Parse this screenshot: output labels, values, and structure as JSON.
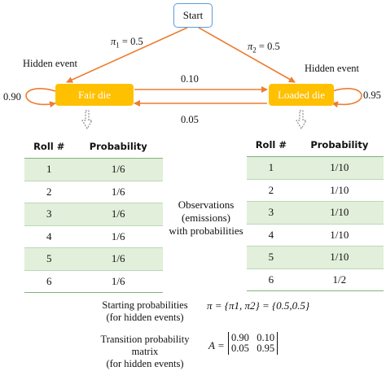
{
  "start": {
    "label": "Start"
  },
  "pi1": {
    "symbol": "π",
    "sub": "1",
    "value": "= 0.5"
  },
  "pi2": {
    "symbol": "π",
    "sub": "2",
    "value": "= 0.5"
  },
  "hidden_event_left": "Hidden event",
  "hidden_event_right": "Hidden event",
  "fair_die": "Fair die",
  "loaded_die": "Loaded die",
  "self_fair": "0.90",
  "self_loaded": "0.95",
  "fair_to_loaded": "0.10",
  "loaded_to_fair": "0.05",
  "table_headers": {
    "roll": "Roll #",
    "prob": "Probability"
  },
  "fair_table": [
    {
      "roll": "1",
      "prob": "1/6"
    },
    {
      "roll": "2",
      "prob": "1/6"
    },
    {
      "roll": "3",
      "prob": "1/6"
    },
    {
      "roll": "4",
      "prob": "1/6"
    },
    {
      "roll": "5",
      "prob": "1/6"
    },
    {
      "roll": "6",
      "prob": "1/6"
    }
  ],
  "loaded_table": [
    {
      "roll": "1",
      "prob": "1/10"
    },
    {
      "roll": "2",
      "prob": "1/10"
    },
    {
      "roll": "3",
      "prob": "1/10"
    },
    {
      "roll": "4",
      "prob": "1/10"
    },
    {
      "roll": "5",
      "prob": "1/10"
    },
    {
      "roll": "6",
      "prob": "1/2"
    }
  ],
  "observations_label": [
    "Observations",
    "(emissions)",
    "with probabilities"
  ],
  "starting": {
    "label": [
      "Starting probabilities",
      "(for hidden events)"
    ],
    "formula": "π = {π1, π2} = {0.5,0.5}"
  },
  "transition": {
    "label": [
      "Transition probability",
      "matrix",
      "(for hidden events)"
    ],
    "lhs": "A =",
    "row1": [
      "0.90",
      "0.10"
    ],
    "row2": [
      "0.05",
      "0.95"
    ]
  },
  "colors": {
    "arrow": "#ed7d31",
    "die": "#ffc000",
    "start_border": "#5b9bd5",
    "row_shade": "#e2efda"
  }
}
